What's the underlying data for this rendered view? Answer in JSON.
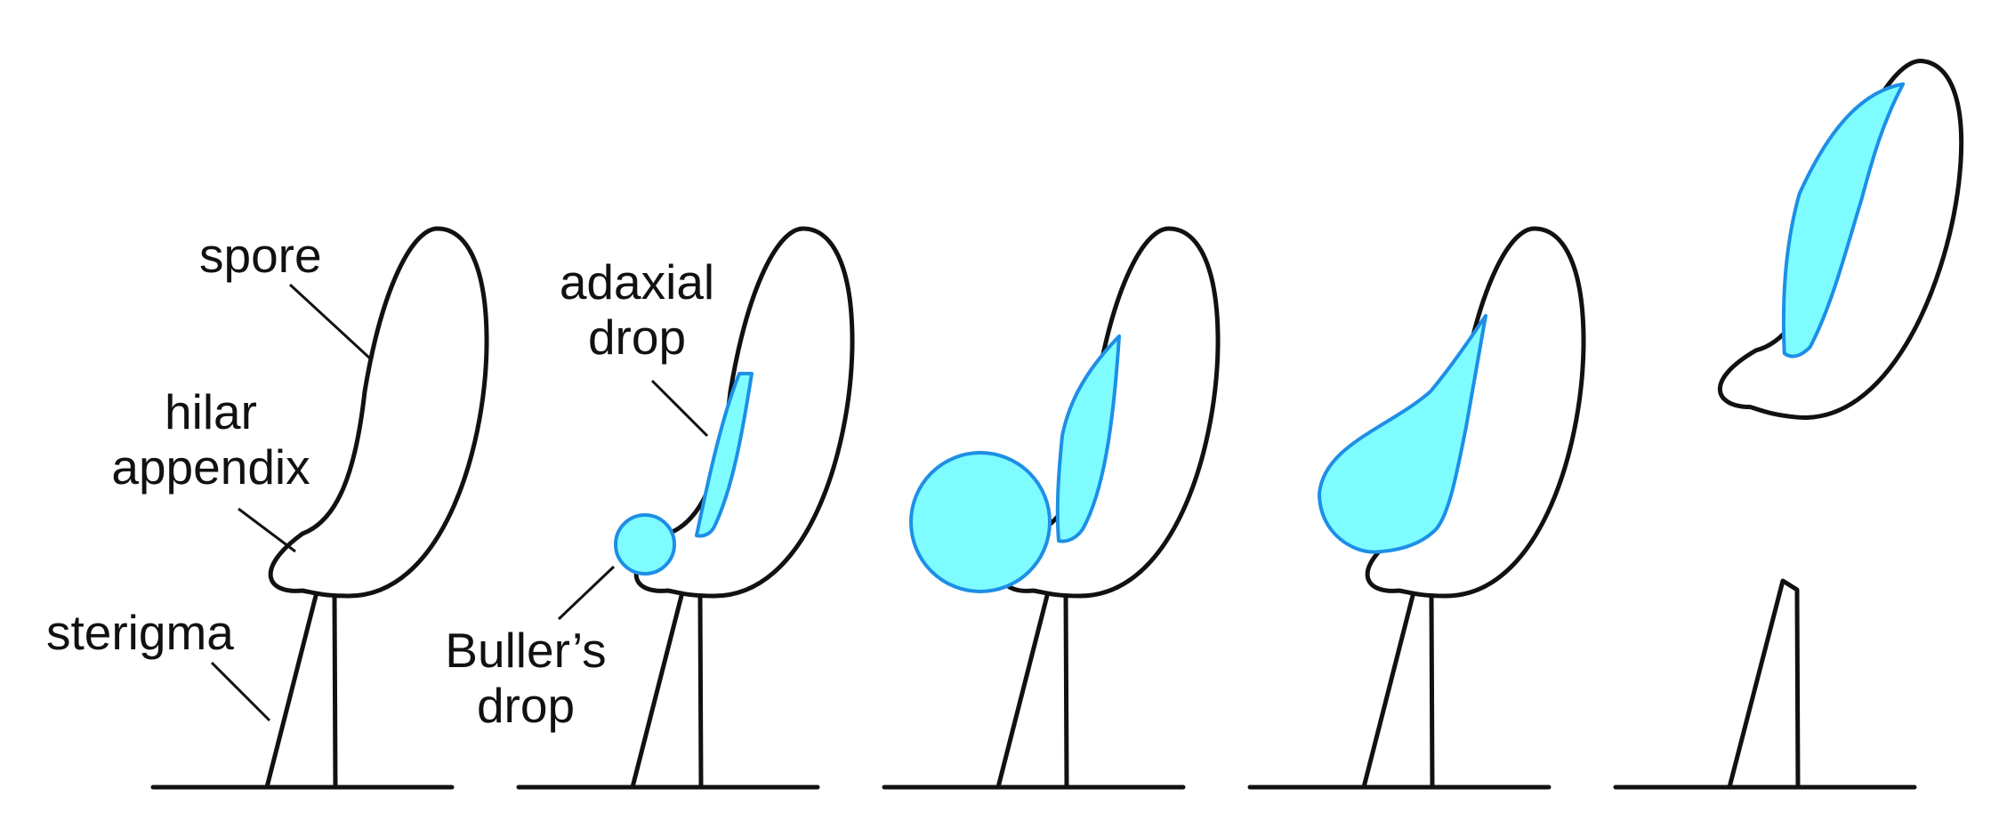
{
  "labels": {
    "spore": "spore",
    "hilar_line1": "hilar",
    "hilar_line2": "appendix",
    "sterigma": "sterigma",
    "adaxial_line1": "adaxial",
    "adaxial_line2": "drop",
    "buller_line1": "Buller’s",
    "buller_line2": "drop"
  },
  "colors": {
    "water_fill": "#7ffcff",
    "water_stroke": "#1d8fe6",
    "ink": "#111111"
  }
}
